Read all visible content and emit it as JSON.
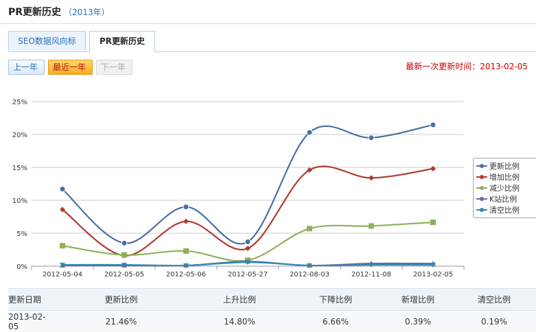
{
  "header": {
    "title": "PR更新历史",
    "year": "（2013年）"
  },
  "tabs": [
    {
      "label": "SEO数据风向标",
      "active": false
    },
    {
      "label": "PR更新历史",
      "active": true
    }
  ],
  "buttons": {
    "prev": "上一年",
    "recent": "最近一年",
    "next": "下一年"
  },
  "last_update": "最新一次更新时间：2013-02-05",
  "chart_data": {
    "type": "line",
    "categories": [
      "2012-05-04",
      "2012-05-05",
      "2012-05-06",
      "2012-05-27",
      "2012-08-03",
      "2012-11-08",
      "2013-02-05"
    ],
    "yticks": [
      "0%",
      "5%",
      "10%",
      "15%",
      "20%",
      "25%"
    ],
    "ylim": [
      0,
      25
    ],
    "grid": true,
    "legend_position": "right",
    "series": [
      {
        "name": "更新比例",
        "color": "#4a6fa5",
        "values": [
          11.7,
          3.5,
          9.0,
          3.7,
          20.3,
          19.5,
          21.46
        ]
      },
      {
        "name": "增加比例",
        "color": "#b03a2e",
        "values": [
          8.6,
          1.6,
          6.8,
          2.7,
          14.6,
          13.4,
          14.8
        ]
      },
      {
        "name": "减少比例",
        "color": "#8fb05a",
        "values": [
          3.1,
          1.7,
          2.3,
          0.9,
          5.7,
          6.1,
          6.66
        ]
      },
      {
        "name": "K站比例",
        "color": "#7b5fa5",
        "values": [
          0.1,
          0.1,
          0.1,
          0.7,
          0.1,
          0.4,
          0.39
        ]
      },
      {
        "name": "清空比例",
        "color": "#2e8bb0",
        "values": [
          0.2,
          0.2,
          0.1,
          0.6,
          0.1,
          0.2,
          0.19
        ]
      }
    ]
  },
  "summary": {
    "headers": [
      "更新日期",
      "更新比例",
      "上升比例",
      "下降比例",
      "新增比例",
      "清空比例"
    ],
    "values": [
      "2013-02-05",
      "21.46%",
      "14.80%",
      "6.66%",
      "0.39%",
      "0.19%"
    ]
  }
}
